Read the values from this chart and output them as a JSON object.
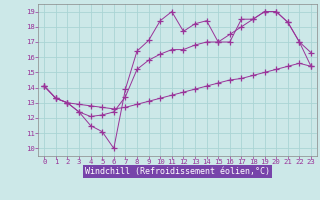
{
  "background_color": "#cce8e8",
  "grid_color": "#aad4d4",
  "line_color": "#993399",
  "xlabel": "Windchill (Refroidissement éolien,°C)",
  "xlabel_fontsize": 6.0,
  "xlabel_bg": "#7744aa",
  "ytick_labels": [
    "10",
    "11",
    "12",
    "13",
    "14",
    "15",
    "16",
    "17",
    "18",
    "19"
  ],
  "ytick_vals": [
    10,
    11,
    12,
    13,
    14,
    15,
    16,
    17,
    18,
    19
  ],
  "xtick_vals": [
    0,
    1,
    2,
    3,
    4,
    5,
    6,
    7,
    8,
    9,
    10,
    11,
    12,
    13,
    14,
    15,
    16,
    17,
    18,
    19,
    20,
    21,
    22,
    23
  ],
  "xlim": [
    -0.5,
    23.5
  ],
  "ylim": [
    9.5,
    19.5
  ],
  "line1_y": [
    14.1,
    13.3,
    13.0,
    12.4,
    11.5,
    11.1,
    10.0,
    13.9,
    16.4,
    17.1,
    18.4,
    19.0,
    17.7,
    18.2,
    18.4,
    17.0,
    17.0,
    18.5,
    18.5,
    19.0,
    19.0,
    18.3,
    17.0,
    16.3
  ],
  "line2_y": [
    14.1,
    13.3,
    13.0,
    12.9,
    12.8,
    12.7,
    12.6,
    12.7,
    12.9,
    13.1,
    13.3,
    13.5,
    13.7,
    13.9,
    14.1,
    14.3,
    14.5,
    14.6,
    14.8,
    15.0,
    15.2,
    15.4,
    15.6,
    15.4
  ],
  "line3_y": [
    14.1,
    13.3,
    13.0,
    12.4,
    12.1,
    12.2,
    12.4,
    13.4,
    15.2,
    15.8,
    16.2,
    16.5,
    16.5,
    16.8,
    17.0,
    17.0,
    17.5,
    18.0,
    18.5,
    19.0,
    19.0,
    18.3,
    17.0,
    15.4
  ]
}
